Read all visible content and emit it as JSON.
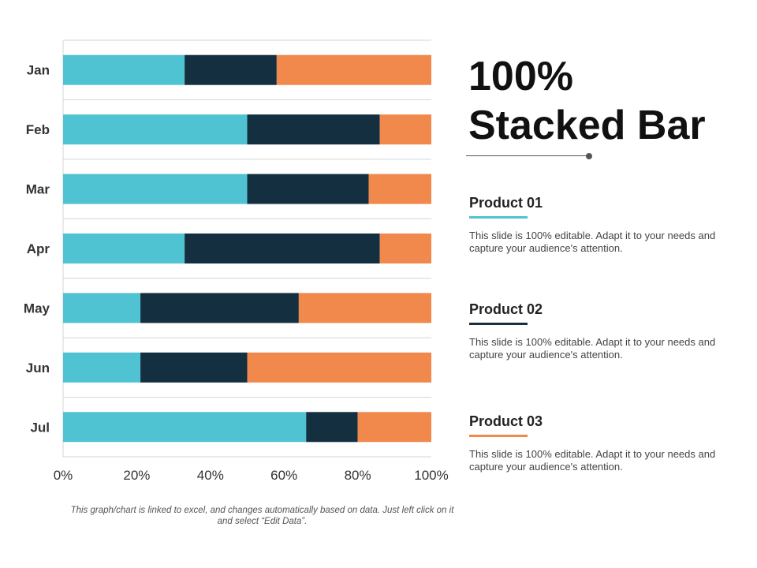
{
  "colors": {
    "product_01": "#4FC3D1",
    "product_02": "#142F40",
    "product_03": "#F0894B",
    "grid": "#d4d4d4",
    "tick_text": "#333333"
  },
  "heading": {
    "line1": "100%",
    "line2": "Stacked Bar"
  },
  "products": [
    {
      "name": "Product 01",
      "color": "#4FC3D1",
      "description": "This slide is 100% editable. Adapt it to your needs and capture your audience's attention."
    },
    {
      "name": "Product 02",
      "color": "#142F40",
      "description": "This slide is 100% editable. Adapt it to your needs and capture your audience's attention."
    },
    {
      "name": "Product 03",
      "color": "#F0894B",
      "description": "This slide is 100% editable. Adapt it to your needs and capture your audience's attention."
    }
  ],
  "footnote": "This graph/chart is linked to excel, and changes automatically based on data. Just left click on it and select “Edit Data”.",
  "chart_data": {
    "type": "bar",
    "orientation": "horizontal",
    "stacking": "percent",
    "title": "",
    "xlabel": "",
    "ylabel": "",
    "xlim": [
      0,
      100
    ],
    "x_ticks": [
      "0%",
      "20%",
      "40%",
      "60%",
      "80%",
      "100%"
    ],
    "categories": [
      "Jan",
      "Feb",
      "Mar",
      "Apr",
      "May",
      "Jun",
      "Jul"
    ],
    "series": [
      {
        "name": "Product 01",
        "color": "#4FC3D1",
        "values": [
          33,
          50,
          50,
          33,
          21,
          21,
          66
        ]
      },
      {
        "name": "Product 02",
        "color": "#142F40",
        "values": [
          25,
          36,
          33,
          53,
          43,
          29,
          14
        ]
      },
      {
        "name": "Product 03",
        "color": "#F0894B",
        "values": [
          42,
          14,
          17,
          14,
          36,
          50,
          20
        ]
      }
    ],
    "grid": true,
    "legend": "right"
  }
}
